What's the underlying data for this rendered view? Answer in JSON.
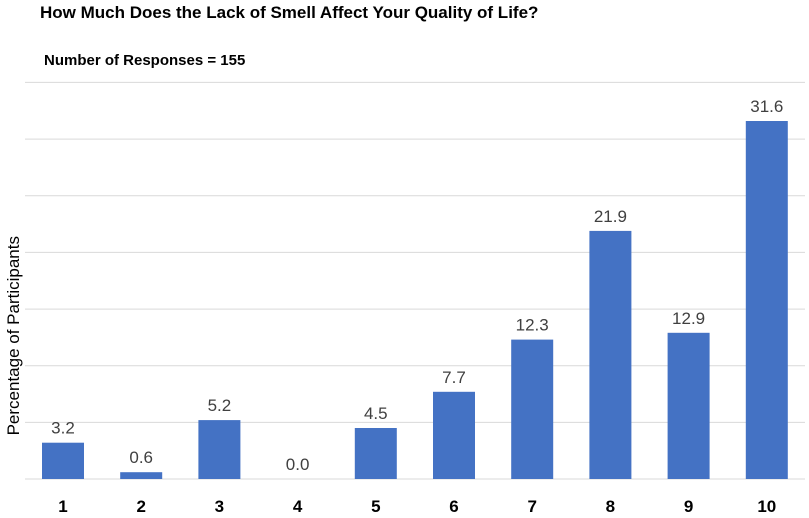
{
  "chart_data": {
    "type": "bar",
    "title": "How Much Does the Lack of Smell Affect Your Quality of Life?",
    "subtitle": "Number of Responses = 155",
    "xlabel": "",
    "ylabel": "Percentage of Participants",
    "categories": [
      "1",
      "2",
      "3",
      "4",
      "5",
      "6",
      "7",
      "8",
      "9",
      "10"
    ],
    "values": [
      3.2,
      0.6,
      5.2,
      0.0,
      4.5,
      7.7,
      12.3,
      21.9,
      12.9,
      31.6
    ],
    "data_labels": [
      "3.2",
      "0.6",
      "5.2",
      "0.0",
      "4.5",
      "7.7",
      "12.3",
      "21.9",
      "12.9",
      "31.6"
    ],
    "ylim": [
      0,
      35
    ],
    "gridline_step": 5,
    "grid": true,
    "legend": "none",
    "bar_color": "#4472c4",
    "grid_color": "#d9d9d9",
    "label_color": "#404040"
  }
}
